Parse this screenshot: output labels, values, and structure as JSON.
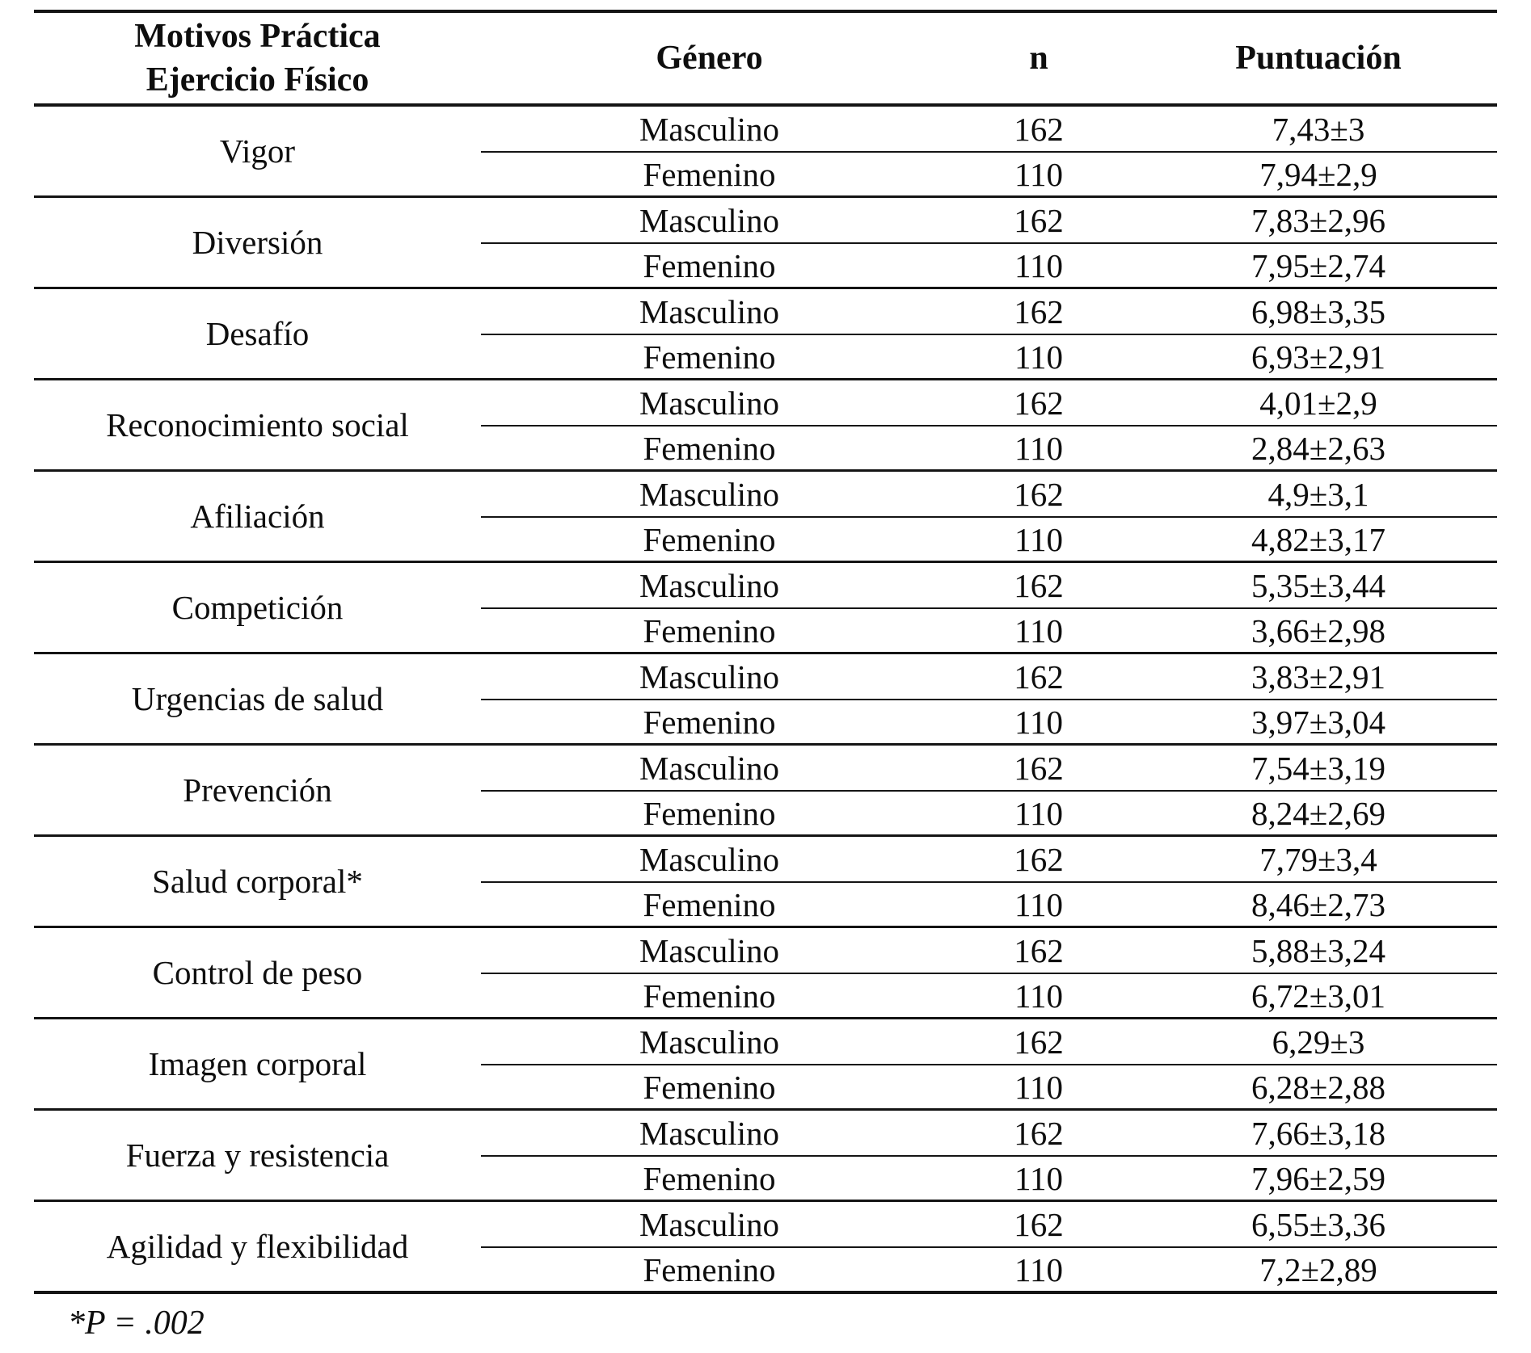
{
  "table": {
    "headers": {
      "motive_line1": "Motivos Práctica",
      "motive_line2": "Ejercicio Físico",
      "gender": "Género",
      "n": "n",
      "score": "Puntuación"
    },
    "groups": [
      {
        "motive": "Vigor",
        "rows": [
          {
            "gender": "Masculino",
            "n": "162",
            "score": "7,43±3"
          },
          {
            "gender": "Femenino",
            "n": "110",
            "score": "7,94±2,9"
          }
        ]
      },
      {
        "motive": "Diversión",
        "rows": [
          {
            "gender": "Masculino",
            "n": "162",
            "score": "7,83±2,96"
          },
          {
            "gender": "Femenino",
            "n": "110",
            "score": "7,95±2,74"
          }
        ]
      },
      {
        "motive": "Desafío",
        "rows": [
          {
            "gender": "Masculino",
            "n": "162",
            "score": "6,98±3,35"
          },
          {
            "gender": "Femenino",
            "n": "110",
            "score": "6,93±2,91"
          }
        ]
      },
      {
        "motive": "Reconocimiento social",
        "rows": [
          {
            "gender": "Masculino",
            "n": "162",
            "score": "4,01±2,9"
          },
          {
            "gender": "Femenino",
            "n": "110",
            "score": "2,84±2,63"
          }
        ]
      },
      {
        "motive": "Afiliación",
        "rows": [
          {
            "gender": "Masculino",
            "n": "162",
            "score": "4,9±3,1"
          },
          {
            "gender": "Femenino",
            "n": "110",
            "score": "4,82±3,17"
          }
        ]
      },
      {
        "motive": "Competición",
        "rows": [
          {
            "gender": "Masculino",
            "n": "162",
            "score": "5,35±3,44"
          },
          {
            "gender": "Femenino",
            "n": "110",
            "score": "3,66±2,98"
          }
        ]
      },
      {
        "motive": "Urgencias de salud",
        "rows": [
          {
            "gender": "Masculino",
            "n": "162",
            "score": "3,83±2,91"
          },
          {
            "gender": "Femenino",
            "n": "110",
            "score": "3,97±3,04"
          }
        ]
      },
      {
        "motive": "Prevención",
        "rows": [
          {
            "gender": "Masculino",
            "n": "162",
            "score": "7,54±3,19"
          },
          {
            "gender": "Femenino",
            "n": "110",
            "score": "8,24±2,69"
          }
        ]
      },
      {
        "motive": "Salud corporal*",
        "rows": [
          {
            "gender": "Masculino",
            "n": "162",
            "score": "7,79±3,4"
          },
          {
            "gender": "Femenino",
            "n": "110",
            "score": "8,46±2,73"
          }
        ]
      },
      {
        "motive": "Control de peso",
        "rows": [
          {
            "gender": "Masculino",
            "n": "162",
            "score": "5,88±3,24"
          },
          {
            "gender": "Femenino",
            "n": "110",
            "score": "6,72±3,01"
          }
        ]
      },
      {
        "motive": "Imagen corporal",
        "rows": [
          {
            "gender": "Masculino",
            "n": "162",
            "score": "6,29±3"
          },
          {
            "gender": "Femenino",
            "n": "110",
            "score": "6,28±2,88"
          }
        ]
      },
      {
        "motive": "Fuerza y resistencia",
        "rows": [
          {
            "gender": "Masculino",
            "n": "162",
            "score": "7,66±3,18"
          },
          {
            "gender": "Femenino",
            "n": "110",
            "score": "7,96±2,59"
          }
        ]
      },
      {
        "motive": "Agilidad y flexibilidad",
        "rows": [
          {
            "gender": "Masculino",
            "n": "162",
            "score": "6,55±3,36"
          },
          {
            "gender": "Femenino",
            "n": "110",
            "score": "7,2±2,89"
          }
        ]
      }
    ],
    "footnote": "*P = .002"
  }
}
